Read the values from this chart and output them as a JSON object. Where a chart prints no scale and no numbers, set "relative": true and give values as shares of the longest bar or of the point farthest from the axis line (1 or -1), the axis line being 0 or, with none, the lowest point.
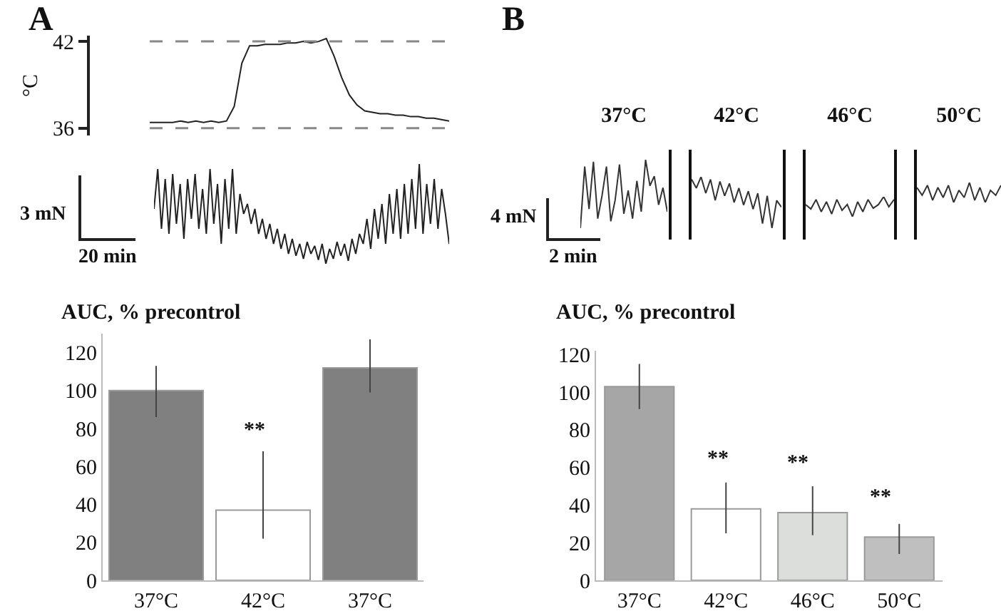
{
  "chart_data": [
    {
      "type": "line",
      "ylabel": "°C",
      "annotations": [
        "A"
      ],
      "categories": [
        null,
        null,
        null,
        null,
        null,
        null,
        null,
        null,
        null,
        null,
        null,
        null,
        null,
        null,
        null,
        null,
        null,
        null,
        null,
        null,
        null,
        null,
        null,
        null,
        null,
        null,
        null,
        null,
        null,
        null,
        null,
        null,
        null,
        null,
        null,
        null,
        null,
        null,
        null,
        null
      ],
      "values": [
        36.4,
        36.4,
        36.4,
        36.4,
        36.5,
        36.4,
        36.5,
        36.4,
        36.5,
        36.4,
        36.5,
        37.5,
        40.5,
        41.7,
        41.7,
        41.8,
        41.8,
        41.8,
        41.9,
        41.9,
        42.0,
        41.9,
        42.0,
        42.2,
        41.0,
        39.5,
        38.3,
        37.6,
        37.2,
        37.1,
        37.0,
        37.0,
        36.9,
        36.9,
        36.8,
        36.8,
        36.7,
        36.7,
        36.6,
        36.5
      ],
      "color": "#222222",
      "ylim": [
        35.5,
        42.4
      ],
      "yticks": [
        36,
        42
      ],
      "ref_lines": [
        {
          "axis": "y",
          "value": 42,
          "color": "#888888",
          "line_style": "dashed"
        },
        {
          "axis": "y",
          "value": 36,
          "color": "#888888",
          "line_style": "dashed"
        }
      ]
    },
    {
      "type": "line",
      "relative": true,
      "annotations": [
        "3 mN",
        "20 min"
      ],
      "categories": [
        null,
        null,
        null,
        null,
        null,
        null,
        null,
        null,
        null,
        null,
        null,
        null,
        null,
        null,
        null,
        null,
        null,
        null,
        null,
        null,
        null,
        null,
        null,
        null,
        null,
        null,
        null,
        null,
        null,
        null,
        null,
        null,
        null,
        null,
        null,
        null,
        null,
        null,
        null,
        null,
        null,
        null,
        null,
        null,
        null,
        null,
        null,
        null,
        null,
        null,
        null,
        null,
        null,
        null,
        null,
        null,
        null,
        null,
        null,
        null,
        null,
        null,
        null,
        null,
        null,
        null,
        null,
        null,
        null,
        null,
        null,
        null,
        null,
        null,
        null,
        null,
        null,
        null,
        null,
        null
      ],
      "values": [
        0.55,
        0.95,
        0.35,
        0.85,
        0.3,
        0.9,
        0.4,
        0.8,
        0.25,
        0.85,
        0.45,
        0.9,
        0.35,
        0.75,
        0.3,
        0.95,
        0.4,
        0.8,
        0.2,
        0.85,
        0.35,
        0.95,
        0.3,
        0.7,
        0.5,
        0.6,
        0.4,
        0.55,
        0.3,
        0.45,
        0.25,
        0.4,
        0.2,
        0.35,
        0.15,
        0.3,
        0.1,
        0.25,
        0.08,
        0.2,
        0.05,
        0.22,
        0.1,
        0.18,
        0.04,
        0.2,
        0.0,
        0.15,
        0.05,
        0.22,
        0.08,
        0.2,
        0.03,
        0.25,
        0.1,
        0.3,
        0.2,
        0.45,
        0.15,
        0.55,
        0.25,
        0.6,
        0.2,
        0.7,
        0.3,
        0.75,
        0.25,
        0.8,
        0.3,
        0.85,
        0.35,
        1.0,
        0.3,
        0.8,
        0.4,
        0.85,
        0.35,
        0.75,
        0.5,
        0.2
      ],
      "color": "#222222"
    },
    {
      "type": "line",
      "relative": true,
      "title": "37°C",
      "annotations": [
        "B",
        "4 mN",
        "2 min"
      ],
      "categories": [
        null,
        null,
        null,
        null,
        null,
        null,
        null,
        null,
        null,
        null,
        null,
        null,
        null,
        null,
        null,
        null,
        null,
        null,
        null,
        null,
        null
      ],
      "values": [
        0,
        0.9,
        0.28,
        0.97,
        0.14,
        0.48,
        0.9,
        0.1,
        0.41,
        0.93,
        0.21,
        0.55,
        0.14,
        0.69,
        0.24,
        1,
        0.62,
        0.76,
        0.34,
        0.59,
        0.24
      ],
      "color": "#333333"
    },
    {
      "type": "line",
      "relative": true,
      "title": "42°C",
      "categories": [
        null,
        null,
        null,
        null,
        null,
        null,
        null,
        null,
        null,
        null,
        null,
        null,
        null,
        null,
        null,
        null,
        null,
        null,
        null,
        null
      ],
      "values": [
        0.95,
        0.78,
        1,
        0.68,
        0.95,
        0.54,
        0.91,
        0.63,
        0.87,
        0.5,
        0.78,
        0.45,
        0.72,
        0.37,
        0.68,
        0.09,
        0.63,
        0,
        0.54,
        0.41
      ],
      "color": "#333333"
    },
    {
      "type": "line",
      "relative": true,
      "title": "46°C",
      "categories": [
        null,
        null,
        null,
        null,
        null,
        null,
        null,
        null,
        null,
        null,
        null,
        null,
        null,
        null,
        null,
        null,
        null,
        null
      ],
      "values": [
        0.61,
        0.39,
        0.86,
        0.25,
        0.75,
        0.14,
        0.86,
        0.32,
        0.61,
        0,
        0.75,
        0.25,
        0.86,
        0.43,
        0.61,
        1,
        0.5,
        0.86
      ],
      "color": "#333333"
    },
    {
      "type": "line",
      "relative": true,
      "title": "50°C",
      "categories": [
        null,
        null,
        null,
        null,
        null,
        null,
        null,
        null,
        null,
        null,
        null,
        null,
        null,
        null,
        null,
        null,
        null
      ],
      "values": [
        0.75,
        0.36,
        0.86,
        0.11,
        0.75,
        0.25,
        0.86,
        0,
        0.61,
        0.25,
        1,
        0.11,
        0.75,
        0,
        0.61,
        0.36,
        0.86
      ],
      "color": "#333333"
    },
    {
      "type": "bar",
      "title": "AUC, % precontrol",
      "categories": [
        "37°C",
        "42°C",
        "37°C"
      ],
      "values": [
        100,
        37,
        112
      ],
      "colors": [
        "#808080",
        "#ffffff",
        "#808080"
      ],
      "errors": [
        [
          86,
          113
        ],
        [
          22,
          68
        ],
        [
          99,
          127
        ]
      ],
      "ylim": [
        0,
        130
      ],
      "yticks": [
        0,
        20,
        40,
        60,
        80,
        100,
        120
      ],
      "annotations": [
        "**"
      ]
    },
    {
      "type": "bar",
      "title": "AUC, % precontrol",
      "categories": [
        "37°C",
        "42°C",
        "46°C",
        "50°C"
      ],
      "values": [
        103,
        38,
        36,
        23
      ],
      "colors": [
        "#a6a6a6",
        "#ffffff",
        "#dcdedc",
        "#bfbfbf"
      ],
      "errors": [
        [
          91,
          115
        ],
        [
          25,
          52
        ],
        [
          24,
          50
        ],
        [
          14,
          30
        ]
      ],
      "ylim": [
        0,
        122
      ],
      "yticks": [
        0,
        20,
        40,
        60,
        80,
        100,
        120
      ],
      "annotations": [
        "**",
        "**",
        "**"
      ]
    }
  ]
}
